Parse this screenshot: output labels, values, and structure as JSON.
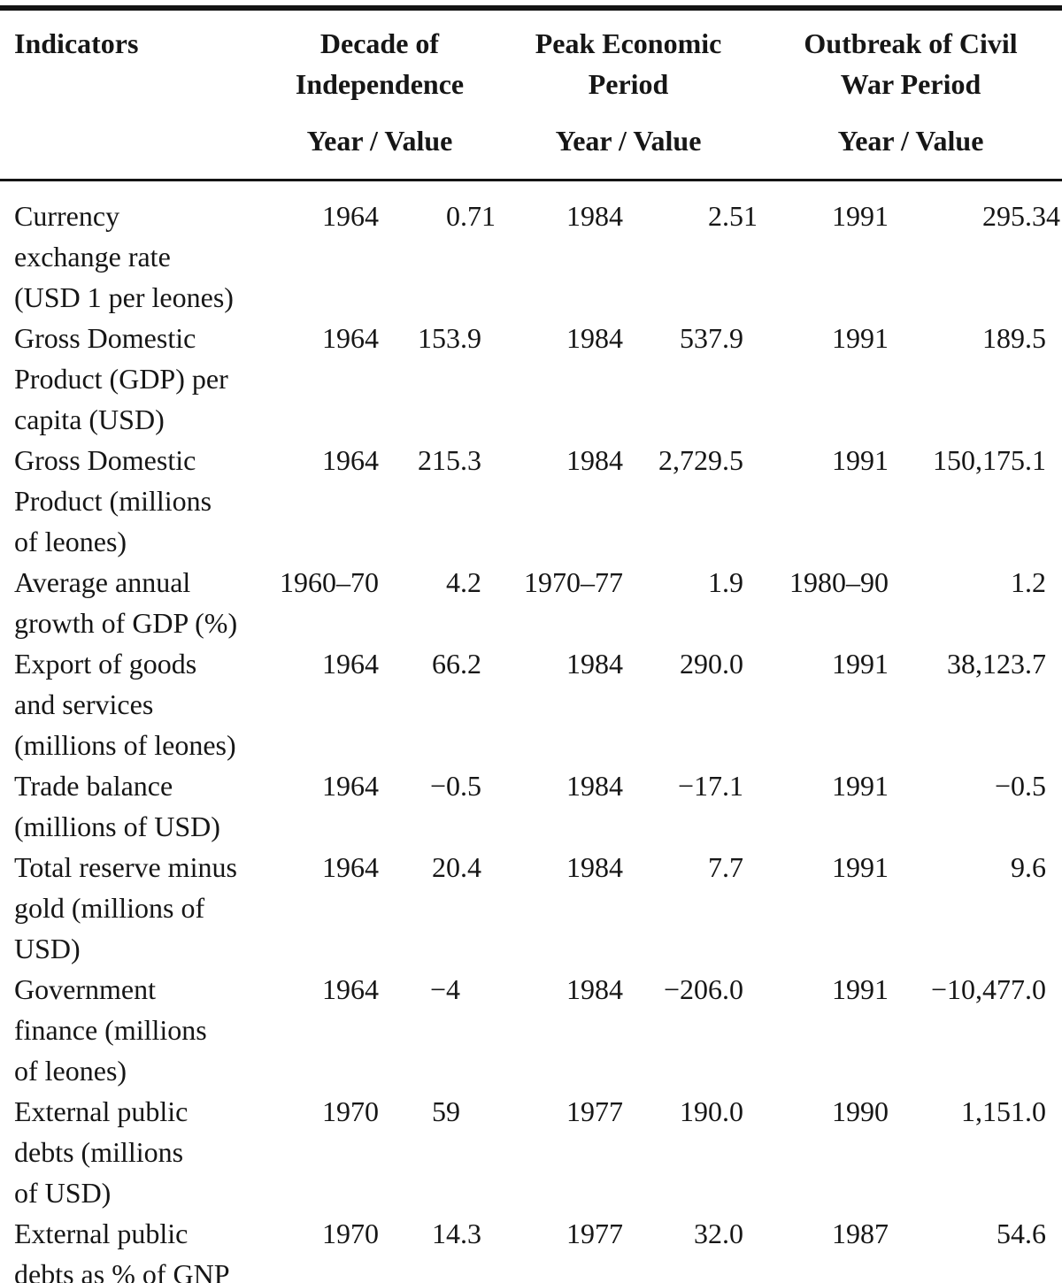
{
  "table": {
    "header": {
      "indicator_label": "Indicators",
      "groups": [
        {
          "title": "Decade of\nIndependence",
          "subtitle": "Year / Value"
        },
        {
          "title": "Peak Economic\nPeriod",
          "subtitle": "Year / Value"
        },
        {
          "title": "Outbreak of Civil\nWar Period",
          "subtitle": "Year / Value"
        }
      ]
    },
    "rows": [
      {
        "indicator": "Currency\nexchange rate\n(USD 1 per leones)",
        "cells": [
          {
            "year": "1964",
            "value": "0.71"
          },
          {
            "year": "1984",
            "value": "2.51"
          },
          {
            "year": "1991",
            "value": "295.34"
          }
        ]
      },
      {
        "indicator": "Gross Domestic\nProduct (GDP) per\ncapita (USD)",
        "cells": [
          {
            "year": "1964",
            "value": "153.9"
          },
          {
            "year": "1984",
            "value": "537.9"
          },
          {
            "year": "1991",
            "value": "189.5"
          }
        ]
      },
      {
        "indicator": "Gross Domestic\nProduct (millions\nof leones)",
        "cells": [
          {
            "year": "1964",
            "value": "215.3"
          },
          {
            "year": "1984",
            "value": "2,729.5"
          },
          {
            "year": "1991",
            "value": "150,175.1"
          }
        ]
      },
      {
        "indicator": "Average annual\ngrowth of GDP (%)",
        "cells": [
          {
            "year": "1960–70",
            "value": "4.2"
          },
          {
            "year": "1970–77",
            "value": "1.9"
          },
          {
            "year": "1980–90",
            "value": "1.2"
          }
        ]
      },
      {
        "indicator": "Export of goods\nand services\n(millions of leones)",
        "cells": [
          {
            "year": "1964",
            "value": "66.2"
          },
          {
            "year": "1984",
            "value": "290.0"
          },
          {
            "year": "1991",
            "value": "38,123.7"
          }
        ]
      },
      {
        "indicator": "Trade balance\n(millions of USD)",
        "cells": [
          {
            "year": "1964",
            "value": "−0.5"
          },
          {
            "year": "1984",
            "value": "−17.1"
          },
          {
            "year": "1991",
            "value": "−0.5"
          }
        ]
      },
      {
        "indicator": "Total reserve minus\ngold (millions of\nUSD)",
        "cells": [
          {
            "year": "1964",
            "value": "20.4"
          },
          {
            "year": "1984",
            "value": "7.7"
          },
          {
            "year": "1991",
            "value": "9.6"
          }
        ]
      },
      {
        "indicator": "Government\nfinance (millions\nof leones)",
        "cells": [
          {
            "year": "1964",
            "value": "−4"
          },
          {
            "year": "1984",
            "value": "−206.0"
          },
          {
            "year": "1991",
            "value": "−10,477.0"
          }
        ]
      },
      {
        "indicator": "External public\ndebts (millions\nof USD)",
        "cells": [
          {
            "year": "1970",
            "value": "59"
          },
          {
            "year": "1977",
            "value": "190.0"
          },
          {
            "year": "1990",
            "value": "1,151.0"
          }
        ]
      },
      {
        "indicator": "External public\ndebts as % of GNP",
        "cells": [
          {
            "year": "1970",
            "value": "14.3"
          },
          {
            "year": "1977",
            "value": "32.0"
          },
          {
            "year": "1987",
            "value": "54.6"
          }
        ]
      }
    ]
  },
  "colors": {
    "text": "#161616",
    "rule": "#141414",
    "background": "#ffffff"
  }
}
